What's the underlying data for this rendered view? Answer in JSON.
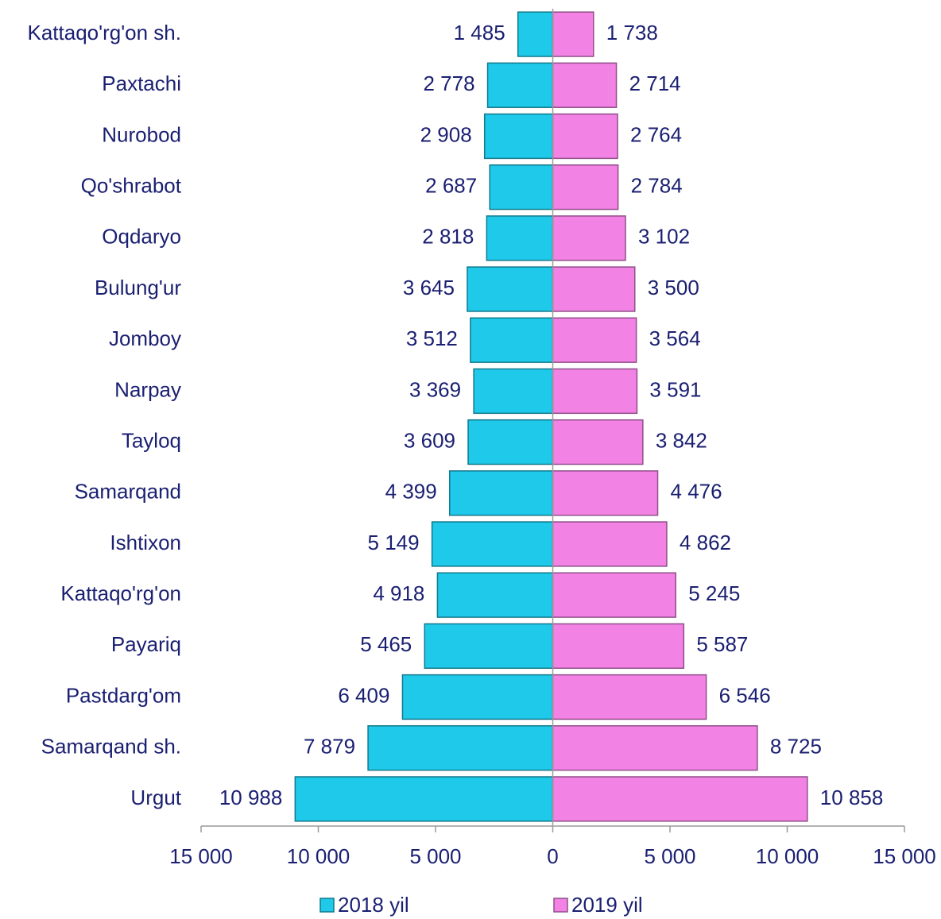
{
  "chart_data": {
    "type": "butterfly",
    "categories": [
      "Kattaqo'rg'on sh.",
      "Paxtachi",
      "Nurobod",
      "Qo'shrabot",
      "Oqdaryo",
      "Bulung'ur",
      "Jomboy",
      "Narpay",
      "Tayloq",
      "Samarqand",
      "Ishtixon",
      "Kattaqo'rg'on",
      "Payariq",
      "Pastdarg'om",
      "Samarqand sh.",
      "Urgut"
    ],
    "series": [
      {
        "name": "2018 yil",
        "color": "#1ec9ea",
        "values": [
          1485,
          2778,
          2908,
          2687,
          2818,
          3645,
          3512,
          3369,
          3609,
          4399,
          5149,
          4918,
          5465,
          6409,
          7879,
          10988
        ],
        "value_labels": [
          "1 485",
          "2 778",
          "2 908",
          "2 687",
          "2 818",
          "3 645",
          "3 512",
          "3 369",
          "3 609",
          "4 399",
          "5 149",
          "4 918",
          "5 465",
          "6 409",
          "7 879",
          "10 988"
        ]
      },
      {
        "name": "2019 yil",
        "color": "#f282e4",
        "values": [
          1738,
          2714,
          2764,
          2784,
          3102,
          3500,
          3564,
          3591,
          3842,
          4476,
          4862,
          5245,
          5587,
          6546,
          8725,
          10858
        ],
        "value_labels": [
          "1 738",
          "2 714",
          "2 764",
          "2 784",
          "3 102",
          "3 500",
          "3 564",
          "3 591",
          "3 842",
          "4 476",
          "4 862",
          "5 245",
          "5 587",
          "6 546",
          "8 725",
          "10 858"
        ]
      }
    ],
    "xlim": [
      -15000,
      15000
    ],
    "xticks": [
      {
        "value": -15000,
        "label": "15 000"
      },
      {
        "value": -10000,
        "label": "10 000"
      },
      {
        "value": -5000,
        "label": "5 000"
      },
      0,
      {
        "value": 5000,
        "label": "5 000"
      },
      {
        "value": 10000,
        "label": "10 000"
      },
      {
        "value": 15000,
        "label": "15 000"
      }
    ],
    "legend": "bottom"
  }
}
